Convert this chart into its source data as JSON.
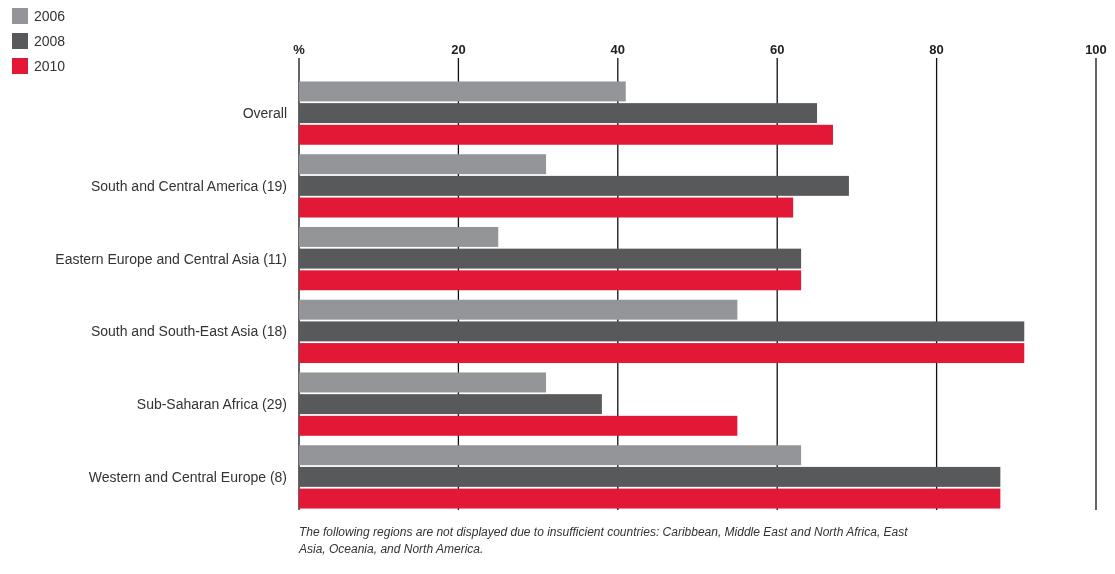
{
  "chart_data": {
    "type": "bar",
    "orientation": "horizontal",
    "categories": [
      "Overall",
      "South and Central America (19)",
      "Eastern Europe and Central Asia (11)",
      "South and South-East Asia (18)",
      "Sub-Saharan Africa (29)",
      "Western and Central Europe (8)"
    ],
    "series": [
      {
        "name": "2006",
        "color": "#939598",
        "values": [
          41,
          31,
          25,
          55,
          31,
          63
        ]
      },
      {
        "name": "2008",
        "color": "#58595b",
        "values": [
          65,
          69,
          63,
          91,
          38,
          88
        ]
      },
      {
        "name": "2010",
        "color": "#e31837",
        "values": [
          67,
          62,
          63,
          91,
          55,
          88
        ]
      }
    ],
    "xlim": [
      0,
      100
    ],
    "xticks": [
      {
        "value": 0,
        "label": "%"
      },
      20,
      40,
      60,
      80,
      100
    ],
    "grid": "x",
    "legend": "top left",
    "annotations": [
      "The following regions are not displayed due to insufficient countries: Caribbean, Middle East and North Africa, East Asia, Oceania, and North America."
    ]
  }
}
